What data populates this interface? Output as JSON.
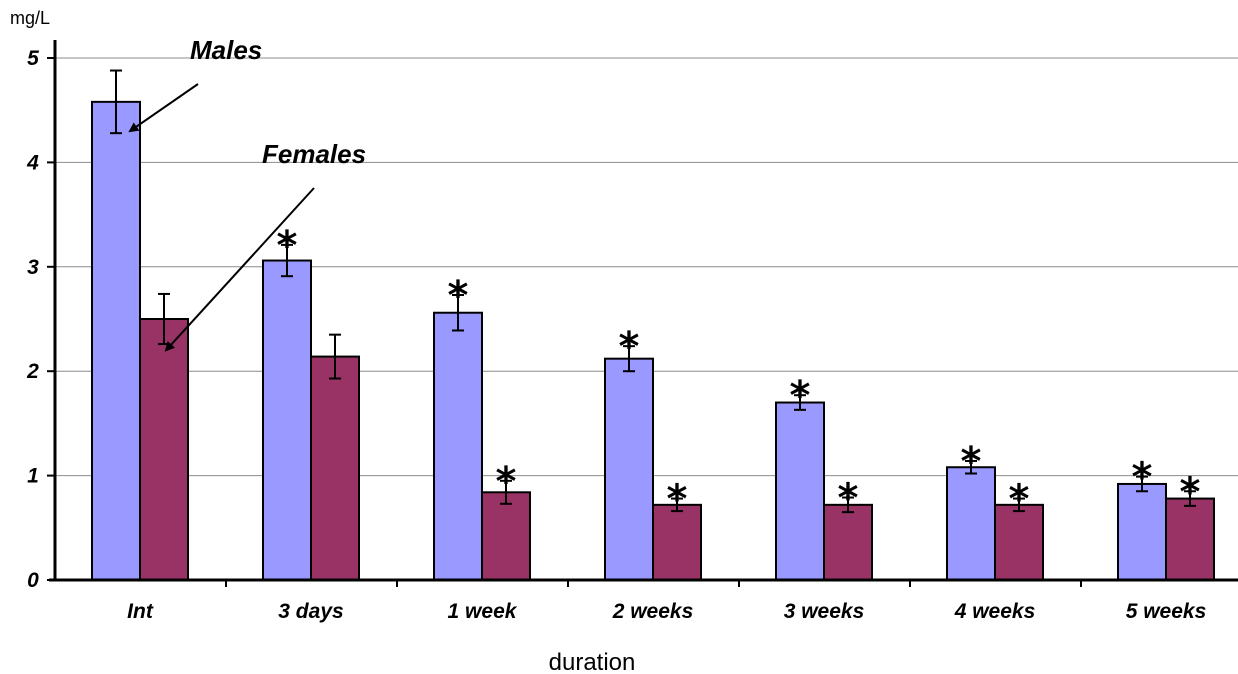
{
  "chart_data": {
    "type": "bar",
    "ylabel": "mg/L",
    "xlabel": "duration",
    "ylim": [
      0,
      5
    ],
    "yticks": [
      "0",
      "1",
      "2",
      "3",
      "4",
      "5"
    ],
    "grid": true,
    "categories": [
      "Int",
      "3 days",
      "1 week",
      "2 weeks",
      "3 weeks",
      "4 weeks",
      "5 weeks"
    ],
    "series": [
      {
        "name": "Males",
        "color": "#9999ff",
        "values": [
          4.58,
          3.06,
          2.56,
          2.12,
          1.7,
          1.08,
          0.92
        ],
        "errors": [
          0.3,
          0.15,
          0.17,
          0.12,
          0.07,
          0.06,
          0.07
        ],
        "significant": [
          false,
          true,
          true,
          true,
          true,
          true,
          true
        ]
      },
      {
        "name": "Females",
        "color": "#993366",
        "values": [
          2.5,
          2.14,
          0.84,
          0.72,
          0.72,
          0.72,
          0.78
        ],
        "errors": [
          0.24,
          0.21,
          0.11,
          0.06,
          0.07,
          0.06,
          0.07
        ],
        "significant": [
          false,
          false,
          true,
          true,
          true,
          true,
          true
        ]
      }
    ],
    "significance_marker": "*",
    "annotations": [
      "Males",
      "Females"
    ]
  }
}
